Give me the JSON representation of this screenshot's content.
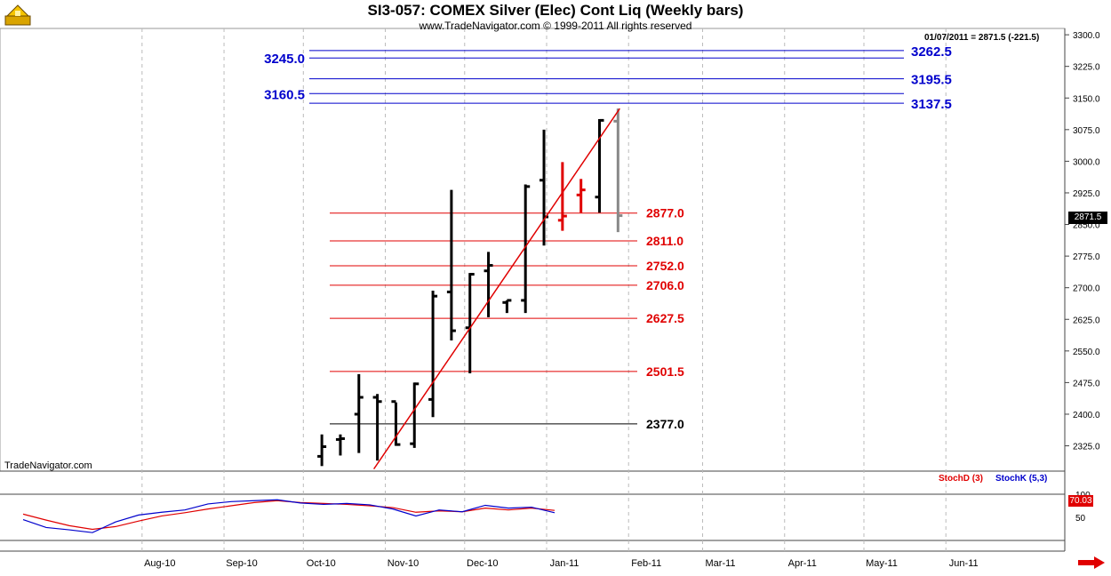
{
  "header": {
    "title": "SI3-057:  COMEX Silver (Elec) Cont Liq  (Weekly bars)",
    "copyright": "www.TradeNavigator.com © 1999-2011 All rights reserved",
    "date_info": "01/07/2011 = 2871.5 (-221.5)",
    "brand": "TradeNavigator.com",
    "last_price": "2871.5"
  },
  "stoch": {
    "d_label": "StochD (3)",
    "k_label": "StochK (5,3)",
    "value_label": "70.03",
    "axis_ticks": [
      "100",
      "50"
    ],
    "d_color": "#e00000",
    "k_color": "#0000cc"
  },
  "colors": {
    "bar_black": "#000000",
    "bar_red": "#e00000",
    "bar_gray": "#888888",
    "blue_level": "#0000cc",
    "red_level": "#e00000",
    "trendline": "#e00000",
    "grid": "#bbbbbb"
  },
  "chart_data": {
    "type": "bar",
    "y_axis_ticks": [
      2325,
      2400,
      2475,
      2550,
      2625,
      2700,
      2775,
      2850,
      2925,
      3000,
      3075,
      3150,
      3225,
      3300
    ],
    "ylim": [
      2265,
      3315
    ],
    "x_month_labels": [
      "Aug-10",
      "Sep-10",
      "Oct-10",
      "Nov-10",
      "Dec-10",
      "Jan-11",
      "Feb-11",
      "Mar-11",
      "Apr-11",
      "May-11",
      "Jun-11"
    ],
    "weekly_bars": [
      {
        "date": "2010-10-08",
        "open": 2300,
        "high": 2352,
        "low": 2277,
        "close": 2323,
        "color": "black"
      },
      {
        "date": "2010-10-15",
        "open": 2340,
        "high": 2352,
        "low": 2302,
        "close": 2342,
        "color": "black"
      },
      {
        "date": "2010-10-22",
        "open": 2400,
        "high": 2495,
        "low": 2308,
        "close": 2440,
        "color": "black"
      },
      {
        "date": "2010-10-29",
        "open": 2440,
        "high": 2448,
        "low": 2290,
        "close": 2430,
        "color": "black"
      },
      {
        "date": "2010-11-05",
        "open": 2430,
        "high": 2428,
        "low": 2325,
        "close": 2328,
        "color": "black"
      },
      {
        "date": "2010-11-12",
        "open": 2330,
        "high": 2475,
        "low": 2320,
        "close": 2472,
        "color": "black"
      },
      {
        "date": "2010-11-19",
        "open": 2435,
        "high": 2693,
        "low": 2393,
        "close": 2680,
        "color": "black"
      },
      {
        "date": "2010-11-26",
        "open": 2690,
        "high": 2932,
        "low": 2575,
        "close": 2598,
        "color": "black"
      },
      {
        "date": "2010-12-03",
        "open": 2605,
        "high": 2735,
        "low": 2497,
        "close": 2732,
        "color": "black"
      },
      {
        "date": "2010-12-10",
        "open": 2740,
        "high": 2785,
        "low": 2630,
        "close": 2753,
        "color": "black"
      },
      {
        "date": "2010-12-17",
        "open": 2665,
        "high": 2670,
        "low": 2640,
        "close": 2670,
        "color": "black"
      },
      {
        "date": "2010-12-24",
        "open": 2670,
        "high": 2945,
        "low": 2640,
        "close": 2940,
        "color": "black"
      },
      {
        "date": "2010-12-31",
        "open": 2955,
        "high": 3075,
        "low": 2800,
        "close": 2868,
        "color": "black"
      },
      {
        "date": "2011-01-07",
        "open": 2860,
        "high": 2998,
        "low": 2835,
        "close": 2870,
        "color": "red"
      },
      {
        "date": "2011-01-14",
        "open": 2920,
        "high": 2958,
        "low": 2878,
        "close": 2932,
        "color": "red"
      },
      {
        "date": "2011-01-21",
        "open": 2915,
        "high": 3100,
        "low": 2878,
        "close": 3097,
        "color": "black"
      },
      {
        "date": "2011-01-28",
        "open": 3095,
        "high": 3125,
        "low": 2832,
        "close": 2871,
        "color": "gray"
      }
    ],
    "resistance_levels_blue": [
      3262.5,
      3245.0,
      3195.5,
      3160.5,
      3137.5
    ],
    "resistance_labels_left": [
      "3245.0",
      "3160.5"
    ],
    "resistance_labels_right": [
      "3262.5",
      "3195.5",
      "3137.5"
    ],
    "support_levels": [
      {
        "value": 2877.0,
        "label": "2877.0",
        "color": "red"
      },
      {
        "value": 2811.0,
        "label": "2811.0",
        "color": "red"
      },
      {
        "value": 2752.0,
        "label": "2752.0",
        "color": "red"
      },
      {
        "value": 2706.0,
        "label": "2706.0",
        "color": "red"
      },
      {
        "value": 2627.5,
        "label": "2627.5",
        "color": "red"
      },
      {
        "value": 2501.5,
        "label": "2501.5",
        "color": "red"
      },
      {
        "value": 2377.0,
        "label": "2377.0",
        "color": "black"
      }
    ],
    "trendline": {
      "from": {
        "date": "2010-10-29",
        "value": 2270
      },
      "to": {
        "date": "2011-01-28",
        "value": 3125
      }
    },
    "stochastic": {
      "ylim": [
        0,
        100
      ],
      "stochK": [
        45,
        28,
        23,
        17,
        40,
        55,
        61,
        66,
        79,
        84,
        86,
        88,
        81,
        78,
        80,
        77,
        68,
        53,
        66,
        62,
        76,
        70,
        72,
        60
      ],
      "stochD": [
        57,
        44,
        32,
        24,
        30,
        42,
        53,
        60,
        68,
        75,
        82,
        86,
        82,
        80,
        78,
        75,
        71,
        61,
        64,
        62,
        70,
        66,
        70,
        65
      ]
    }
  }
}
